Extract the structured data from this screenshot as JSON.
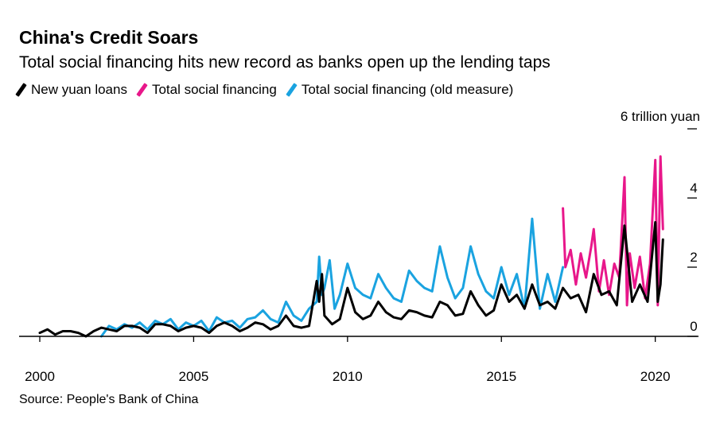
{
  "header": {
    "title": "China's Credit Soars",
    "subtitle": "Total social financing hits new record as banks open up the lending taps"
  },
  "legend": [
    {
      "label": "New yuan loans",
      "color": "#000000"
    },
    {
      "label": "Total social financing",
      "color": "#e8178a"
    },
    {
      "label": "Total social financing (old measure)",
      "color": "#1aa3e0"
    }
  ],
  "source": "Source: People's Bank of China",
  "chart_data": {
    "type": "line",
    "title": "China's Credit Soars",
    "ylabel": "6 trillion yuan",
    "ylim": [
      0,
      6
    ],
    "yticks": [
      0,
      2,
      4,
      6
    ],
    "ytick_labels": [
      "0",
      "2",
      "4",
      ""
    ],
    "xlim": [
      2000.0,
      2020.5
    ],
    "xticks": [
      2000,
      2005,
      2010,
      2015,
      2020
    ],
    "xtick_labels": [
      "2000",
      "2005",
      "2010",
      "2015",
      "2020"
    ],
    "series": [
      {
        "name": "Total social financing (old measure)",
        "color": "#1aa3e0",
        "x": [
          2002.0,
          2002.25,
          2002.5,
          2002.75,
          2003.0,
          2003.25,
          2003.5,
          2003.75,
          2004.0,
          2004.25,
          2004.5,
          2004.75,
          2005.0,
          2005.25,
          2005.5,
          2005.75,
          2006.0,
          2006.25,
          2006.5,
          2006.75,
          2007.0,
          2007.25,
          2007.5,
          2007.75,
          2008.0,
          2008.25,
          2008.5,
          2008.75,
          2009.0,
          2009.08,
          2009.17,
          2009.25,
          2009.42,
          2009.58,
          2009.75,
          2010.0,
          2010.25,
          2010.5,
          2010.75,
          2011.0,
          2011.25,
          2011.5,
          2011.75,
          2012.0,
          2012.25,
          2012.5,
          2012.75,
          2013.0,
          2013.25,
          2013.5,
          2013.75,
          2014.0,
          2014.25,
          2014.5,
          2014.75,
          2015.0,
          2015.25,
          2015.5,
          2015.75,
          2016.0,
          2016.25,
          2016.5,
          2016.75,
          2017.0
        ],
        "values": [
          0.0,
          0.3,
          0.2,
          0.35,
          0.25,
          0.4,
          0.2,
          0.45,
          0.35,
          0.5,
          0.2,
          0.4,
          0.3,
          0.45,
          0.15,
          0.55,
          0.4,
          0.45,
          0.25,
          0.5,
          0.55,
          0.75,
          0.5,
          0.4,
          1.0,
          0.6,
          0.45,
          0.8,
          1.0,
          2.3,
          1.2,
          1.4,
          2.2,
          0.8,
          1.2,
          2.1,
          1.4,
          1.2,
          1.1,
          1.8,
          1.4,
          1.1,
          1.0,
          1.9,
          1.6,
          1.4,
          1.3,
          2.6,
          1.7,
          1.1,
          1.4,
          2.6,
          1.8,
          1.3,
          1.1,
          2.0,
          1.2,
          1.8,
          0.8,
          3.4,
          0.8,
          1.8,
          1.0,
          2.0
        ]
      },
      {
        "name": "Total social financing",
        "color": "#e8178a",
        "x": [
          2017.0,
          2017.08,
          2017.25,
          2017.42,
          2017.58,
          2017.75,
          2017.92,
          2018.0,
          2018.17,
          2018.33,
          2018.5,
          2018.67,
          2018.83,
          2019.0,
          2019.08,
          2019.17,
          2019.33,
          2019.5,
          2019.67,
          2019.83,
          2020.0,
          2020.08,
          2020.17,
          2020.25
        ],
        "values": [
          3.7,
          2.0,
          2.5,
          1.5,
          2.4,
          1.7,
          2.6,
          3.1,
          1.3,
          2.2,
          1.2,
          2.1,
          1.7,
          4.6,
          0.9,
          2.4,
          1.4,
          2.3,
          1.1,
          2.1,
          5.1,
          0.9,
          5.2,
          3.1
        ]
      },
      {
        "name": "New yuan loans",
        "color": "#000000",
        "x": [
          2000.0,
          2000.25,
          2000.5,
          2000.75,
          2001.0,
          2001.25,
          2001.5,
          2001.75,
          2002.0,
          2002.25,
          2002.5,
          2002.75,
          2003.0,
          2003.25,
          2003.5,
          2003.75,
          2004.0,
          2004.25,
          2004.5,
          2004.75,
          2005.0,
          2005.25,
          2005.5,
          2005.75,
          2006.0,
          2006.25,
          2006.5,
          2006.75,
          2007.0,
          2007.25,
          2007.5,
          2007.75,
          2008.0,
          2008.25,
          2008.5,
          2008.75,
          2009.0,
          2009.08,
          2009.17,
          2009.25,
          2009.5,
          2009.75,
          2010.0,
          2010.25,
          2010.5,
          2010.75,
          2011.0,
          2011.25,
          2011.5,
          2011.75,
          2012.0,
          2012.25,
          2012.5,
          2012.75,
          2013.0,
          2013.25,
          2013.5,
          2013.75,
          2014.0,
          2014.25,
          2014.5,
          2014.75,
          2015.0,
          2015.25,
          2015.5,
          2015.75,
          2016.0,
          2016.25,
          2016.5,
          2016.75,
          2017.0,
          2017.25,
          2017.5,
          2017.75,
          2018.0,
          2018.25,
          2018.5,
          2018.75,
          2019.0,
          2019.25,
          2019.5,
          2019.75,
          2020.0,
          2020.08,
          2020.17,
          2020.25
        ],
        "values": [
          0.1,
          0.2,
          0.05,
          0.15,
          0.15,
          0.1,
          0.0,
          0.15,
          0.25,
          0.2,
          0.15,
          0.3,
          0.3,
          0.25,
          0.1,
          0.35,
          0.35,
          0.3,
          0.15,
          0.25,
          0.3,
          0.25,
          0.1,
          0.3,
          0.4,
          0.3,
          0.15,
          0.25,
          0.4,
          0.35,
          0.2,
          0.3,
          0.6,
          0.3,
          0.25,
          0.3,
          1.6,
          1.0,
          1.8,
          0.6,
          0.35,
          0.5,
          1.4,
          0.7,
          0.5,
          0.6,
          1.0,
          0.7,
          0.55,
          0.5,
          0.75,
          0.7,
          0.6,
          0.55,
          1.0,
          0.9,
          0.6,
          0.65,
          1.3,
          0.9,
          0.6,
          0.75,
          1.5,
          1.0,
          1.2,
          0.8,
          1.5,
          0.9,
          1.0,
          0.8,
          1.4,
          1.1,
          1.2,
          0.7,
          1.8,
          1.2,
          1.3,
          0.9,
          3.2,
          1.0,
          1.5,
          1.0,
          3.3,
          1.0,
          1.5,
          2.8
        ]
      }
    ]
  }
}
